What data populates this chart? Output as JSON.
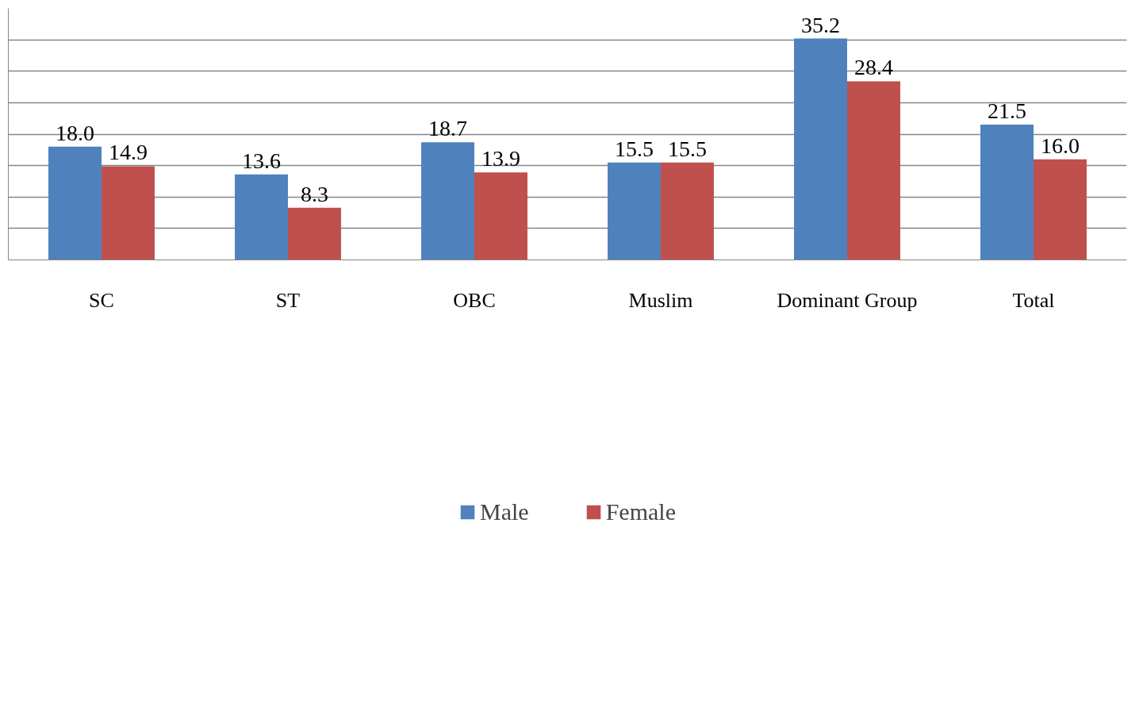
{
  "chart_data": {
    "type": "bar",
    "categories": [
      "SC",
      "ST",
      "OBC",
      "Muslim",
      "Dominant Group",
      "Total"
    ],
    "series": [
      {
        "name": "Male",
        "color": "#4f81bd",
        "values": [
          18.0,
          13.6,
          18.7,
          15.5,
          35.2,
          21.5
        ],
        "value_labels": [
          "18.0",
          "13.6",
          "18.7",
          "15.5",
          "35.2",
          "21.5"
        ]
      },
      {
        "name": "Female",
        "color": "#c0504d",
        "values": [
          14.9,
          8.3,
          13.9,
          15.5,
          28.4,
          16.0
        ],
        "value_labels": [
          "14.9",
          "8.3",
          "13.9",
          "15.5",
          "28.4",
          "16.0"
        ]
      }
    ],
    "ylim": [
      0,
      40
    ],
    "yticks": [
      {
        "value": 0,
        "label": null
      },
      {
        "value": 5,
        "label": null
      },
      {
        "value": 10,
        "label": null
      },
      {
        "value": 15,
        "label": null
      },
      {
        "value": 20,
        "label": null
      },
      {
        "value": 25,
        "label": null
      },
      {
        "value": 30,
        "label": null
      },
      {
        "value": 35,
        "label": null
      }
    ],
    "grid": "y",
    "tick_labels": "x",
    "legend": "bottom"
  }
}
